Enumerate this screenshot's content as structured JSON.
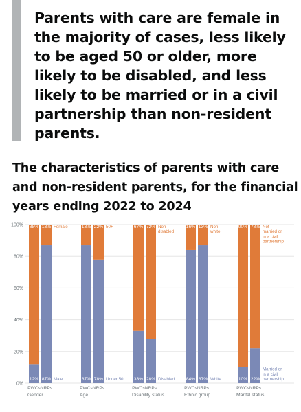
{
  "summary": "Parents with care are female in the majority of cases, less likely to be aged 50 or older, more likely to be disabled, and less likely to be married or in a civil partnership than non-resident parents.",
  "colors": {
    "top": "#e07b39",
    "bottom": "#7b89b6",
    "axis_text": "#6f777b",
    "grid": "#e6e6e6"
  },
  "chart_data": {
    "type": "bar",
    "stacked": true,
    "title": "The characteristics of parents with care and non-resident parents, for the financial years ending 2022 to 2024",
    "ylim": [
      0,
      100
    ],
    "yticks": [
      "0%",
      "20%",
      "40%",
      "60%",
      "80%",
      "100%"
    ],
    "grid": true,
    "groups": [
      {
        "name": "Gender",
        "categories": [
          "PWCs",
          "NRPs"
        ],
        "series": [
          {
            "name": "Male",
            "values": [
              12,
              87
            ],
            "labels": [
              "12%",
              "87%"
            ]
          },
          {
            "name": "Female",
            "values": [
              88,
              13
            ],
            "labels": [
              "88%",
              "13%"
            ]
          }
        ]
      },
      {
        "name": "Age",
        "categories": [
          "PWCs",
          "NRPs"
        ],
        "series": [
          {
            "name": "Under 50",
            "values": [
              87,
              78
            ],
            "labels": [
              "87%",
              "78%"
            ]
          },
          {
            "name": "50+",
            "values": [
              13,
              22
            ],
            "labels": [
              "13%",
              "22%"
            ]
          }
        ]
      },
      {
        "name": "Disability status",
        "categories": [
          "PWCs",
          "NRPs"
        ],
        "series": [
          {
            "name": "Disabled",
            "values": [
              33,
              28
            ],
            "labels": [
              "33%",
              "28%"
            ]
          },
          {
            "name": "Non-\ndisabled",
            "values": [
              67,
              72
            ],
            "labels": [
              "67%",
              "72%"
            ]
          }
        ]
      },
      {
        "name": "Ethnic group",
        "categories": [
          "PWCs",
          "NRPs"
        ],
        "series": [
          {
            "name": "White",
            "values": [
              84,
              87
            ],
            "labels": [
              "84%",
              "87%"
            ]
          },
          {
            "name": "Non-\nwhite",
            "values": [
              16,
              13
            ],
            "labels": [
              "16%",
              "13%"
            ]
          }
        ]
      },
      {
        "name": "Marital status",
        "categories": [
          "PWCs",
          "NRPs"
        ],
        "series": [
          {
            "name": "Married or\nin a civil\npartnership",
            "values": [
              10,
              22
            ],
            "labels": [
              "10%",
              "22%"
            ]
          },
          {
            "name": "Not\nmarried or\nin a civil\npartnership",
            "values": [
              90,
              78
            ],
            "labels": [
              "90%",
              "78%"
            ]
          }
        ]
      }
    ]
  }
}
